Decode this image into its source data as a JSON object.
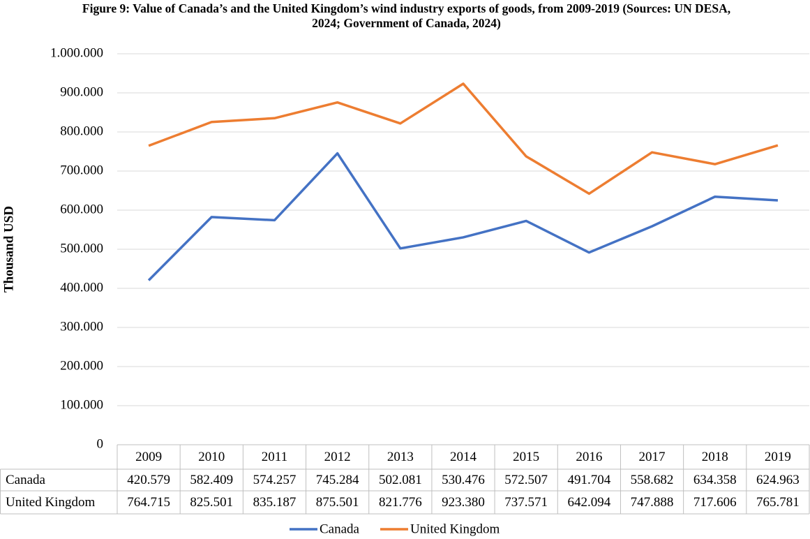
{
  "chart_data": {
    "type": "line",
    "title": "Figure 9: Value of Canada’s and the United Kingdom’s wind industry exports of goods, from 2009-2019 (Sources: UN DESA, 2024; Government of Canada, 2024)",
    "y_label": "Thousand USD",
    "categories": [
      "2009",
      "2010",
      "2011",
      "2012",
      "2013",
      "2014",
      "2015",
      "2016",
      "2017",
      "2018",
      "2019"
    ],
    "series": [
      {
        "name": "Canada",
        "color": "#4472c4",
        "values": [
          420579,
          582409,
          574257,
          745284,
          502081,
          530476,
          572507,
          491704,
          558682,
          634358,
          624963
        ],
        "value_labels": [
          "420.579",
          "582.409",
          "574.257",
          "745.284",
          "502.081",
          "530.476",
          "572.507",
          "491.704",
          "558.682",
          "634.358",
          "624.963"
        ]
      },
      {
        "name": "United Kingdom",
        "color": "#ed7d31",
        "values": [
          764715,
          825501,
          835187,
          875501,
          821776,
          923380,
          737571,
          642094,
          747888,
          717606,
          765781
        ],
        "value_labels": [
          "764.715",
          "825.501",
          "835.187",
          "875.501",
          "821.776",
          "923.380",
          "737.571",
          "642.094",
          "747.888",
          "717.606",
          "765.781"
        ]
      }
    ],
    "ylim": [
      0,
      1000000
    ],
    "yticks": [
      0,
      {
        "value": 100000,
        "label": "100.000"
      },
      {
        "value": 200000,
        "label": "200.000"
      },
      {
        "value": 300000,
        "label": "300.000"
      },
      {
        "value": 400000,
        "label": "400.000"
      },
      {
        "value": 500000,
        "label": "500.000"
      },
      {
        "value": 600000,
        "label": "600.000"
      },
      {
        "value": 700000,
        "label": "700.000"
      },
      {
        "value": 800000,
        "label": "800.000"
      },
      {
        "value": 900000,
        "label": "900.000"
      },
      {
        "value": 1000000,
        "label": "1.000.000"
      }
    ],
    "grid": true,
    "legend": "bottom"
  }
}
